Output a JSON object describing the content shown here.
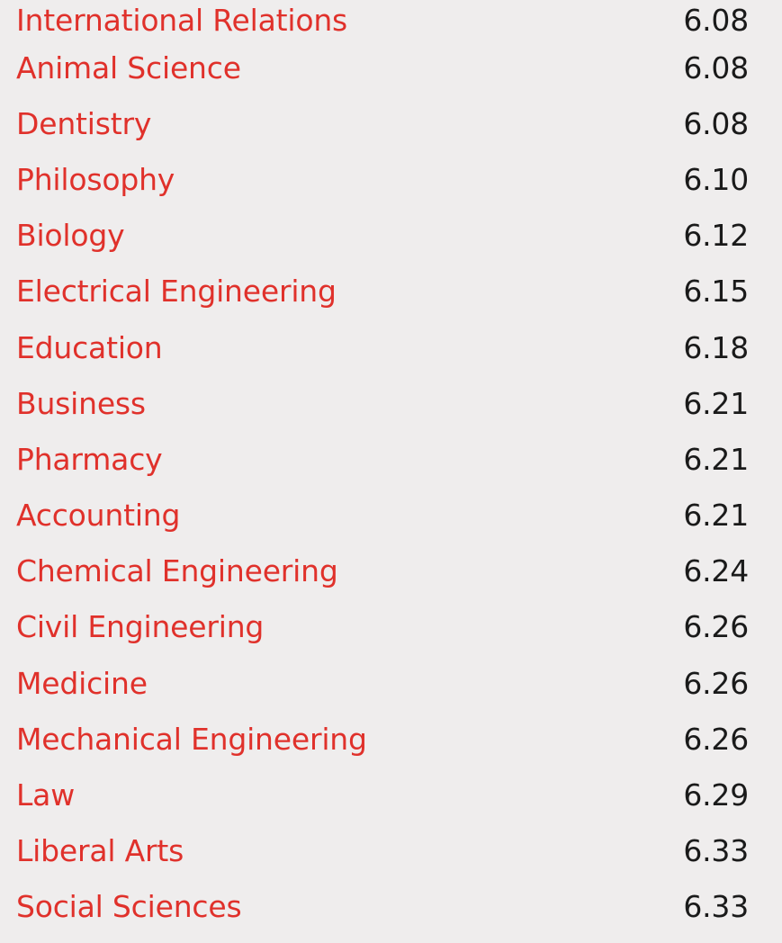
{
  "rows": [
    {
      "subject": "International Relations",
      "score": "6.08"
    },
    {
      "subject": "Animal Science",
      "score": "6.08"
    },
    {
      "subject": "Dentistry",
      "score": "6.08"
    },
    {
      "subject": "Philosophy",
      "score": "6.10"
    },
    {
      "subject": "Biology",
      "score": "6.12"
    },
    {
      "subject": "Electrical Engineering",
      "score": "6.15"
    },
    {
      "subject": "Education",
      "score": "6.18"
    },
    {
      "subject": "Business",
      "score": "6.21"
    },
    {
      "subject": "Pharmacy",
      "score": "6.21"
    },
    {
      "subject": "Accounting",
      "score": "6.21"
    },
    {
      "subject": "Chemical Engineering",
      "score": "6.24"
    },
    {
      "subject": "Civil Engineering",
      "score": "6.26"
    },
    {
      "subject": "Medicine",
      "score": "6.26"
    },
    {
      "subject": "Mechanical Engineering",
      "score": "6.26"
    },
    {
      "subject": "Law",
      "score": "6.29"
    },
    {
      "subject": "Liberal Arts",
      "score": "6.33"
    },
    {
      "subject": "Social Sciences",
      "score": "6.33"
    }
  ],
  "colors": {
    "subject_text": "#e0312b",
    "score_text": "#1a1a1a",
    "background": "#efeded"
  }
}
